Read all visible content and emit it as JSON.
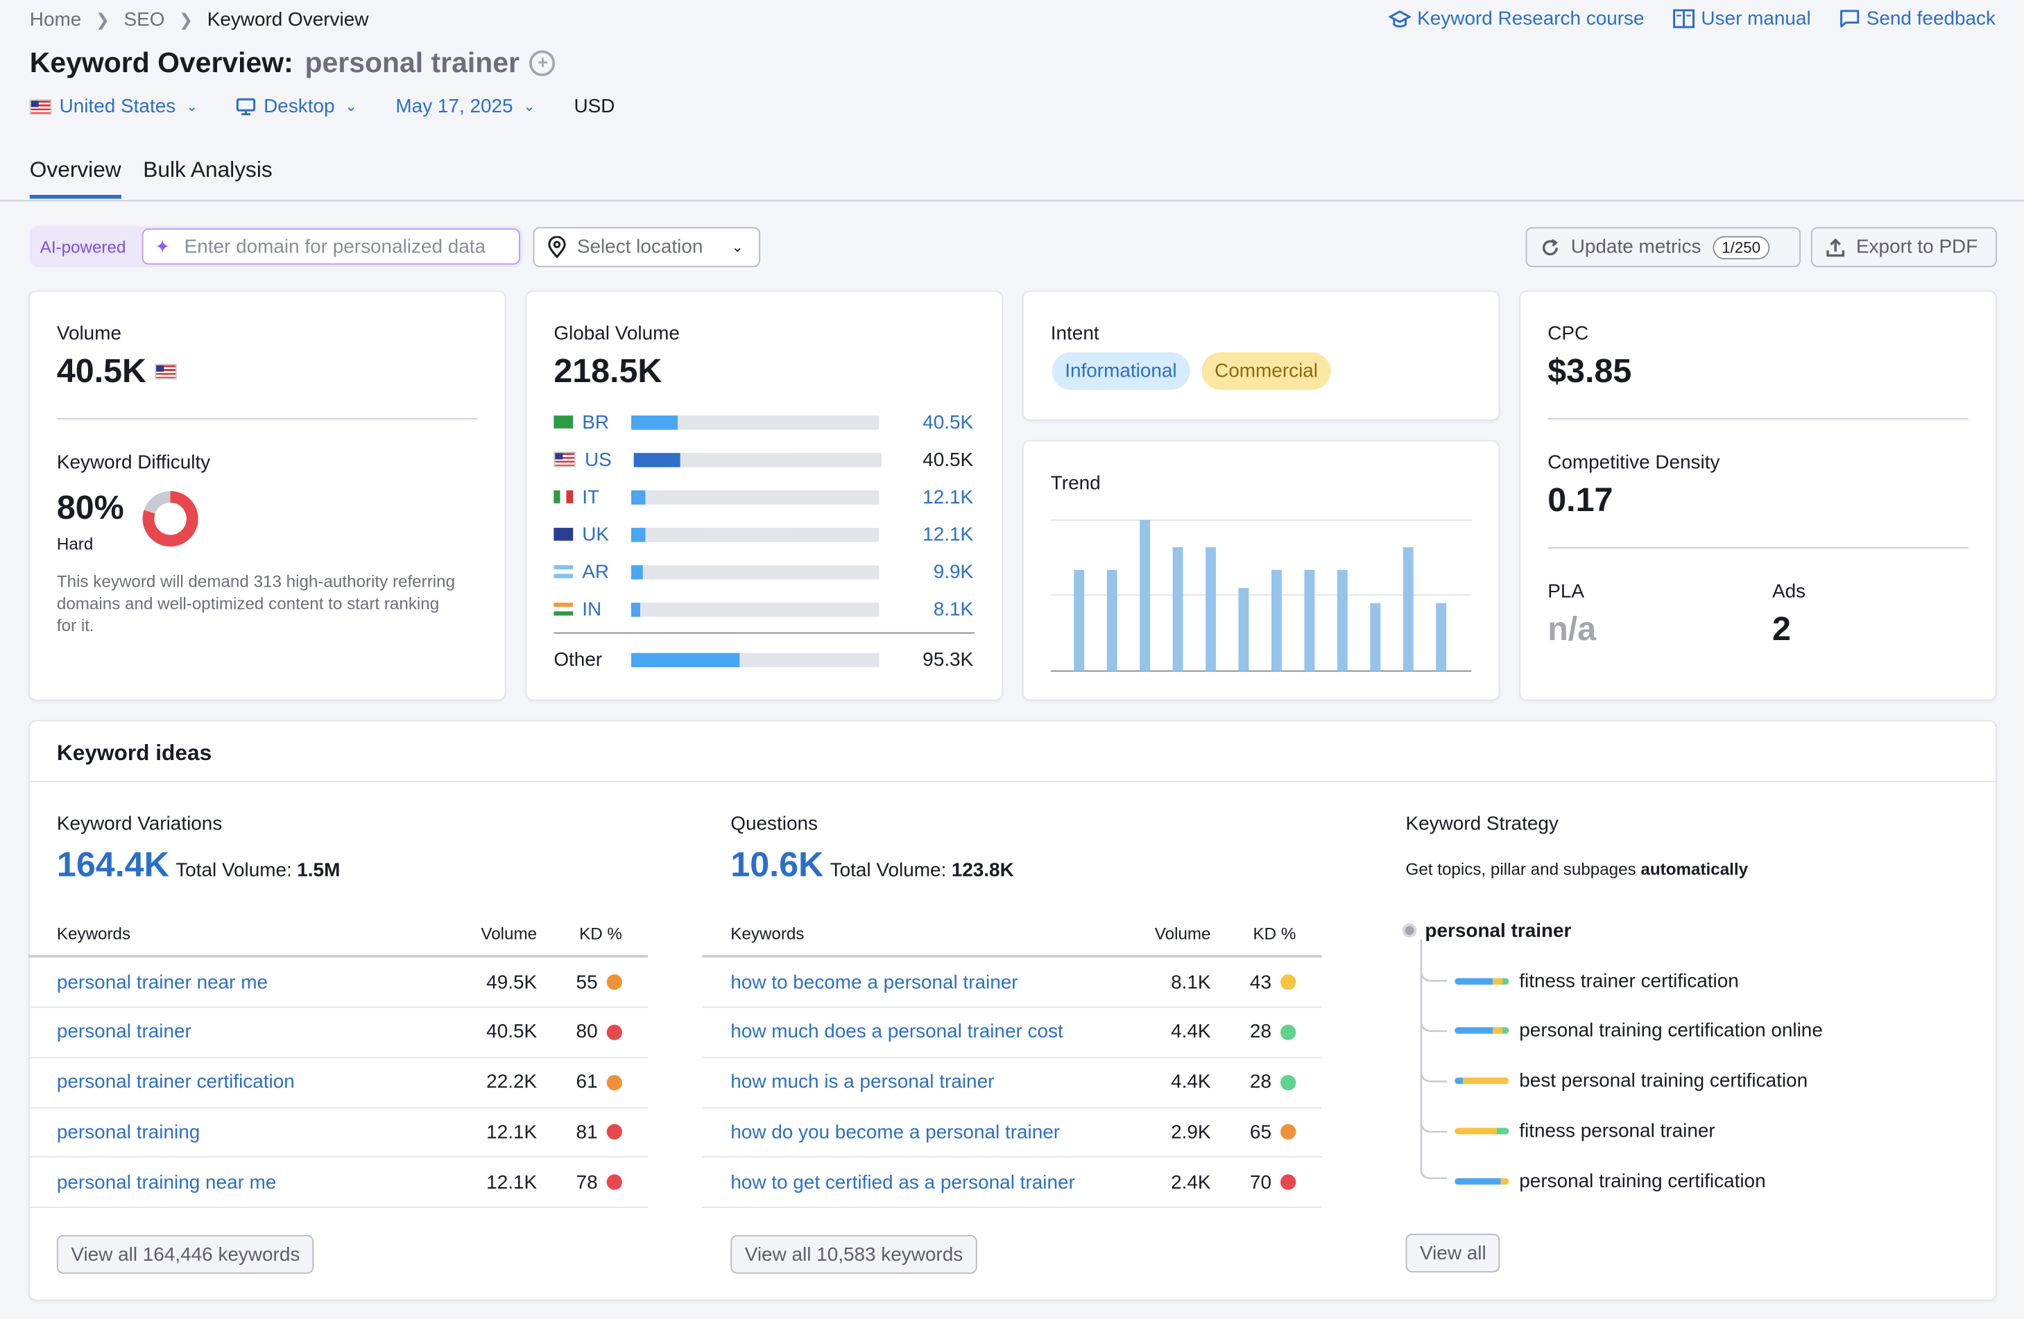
{
  "breadcrumb": [
    "Home",
    "SEO",
    "Keyword Overview"
  ],
  "top_links": {
    "course": "Keyword Research course",
    "manual": "User manual",
    "feedback": "Send feedback"
  },
  "title": {
    "prefix": "Keyword Overview:",
    "keyword": "personal trainer"
  },
  "filters": {
    "country": "United States",
    "device": "Desktop",
    "date": "May 17, 2025",
    "currency": "USD"
  },
  "tabs": [
    "Overview",
    "Bulk Analysis"
  ],
  "toolbar": {
    "ai_label": "AI-powered",
    "domain_placeholder": "Enter domain for personalized data",
    "location_placeholder": "Select location",
    "update_label": "Update metrics",
    "update_count": "1/250",
    "export_label": "Export to PDF"
  },
  "volume": {
    "label": "Volume",
    "value": "40.5K",
    "kd_label": "Keyword Difficulty",
    "kd_value": "80%",
    "kd_fraction": 0.8,
    "kd_level": "Hard",
    "kd_text": "This keyword will demand 313 high-authority referring domains and well-optimized content to start ranking for it."
  },
  "global_volume": {
    "label": "Global Volume",
    "value": "218.5K",
    "rows": [
      {
        "code": "BR",
        "value": "40.5K",
        "share": 0.185,
        "link": true
      },
      {
        "code": "US",
        "value": "40.5K",
        "share": 0.185,
        "link": false
      },
      {
        "code": "IT",
        "value": "12.1K",
        "share": 0.055,
        "link": true
      },
      {
        "code": "UK",
        "value": "12.1K",
        "share": 0.055,
        "link": true
      },
      {
        "code": "AR",
        "value": "9.9K",
        "share": 0.045,
        "link": true
      },
      {
        "code": "IN",
        "value": "8.1K",
        "share": 0.037,
        "link": true
      }
    ],
    "other_label": "Other",
    "other_value": "95.3K",
    "other_share": 0.436
  },
  "intent": {
    "label": "Intent",
    "badges": [
      "Informational",
      "Commercial"
    ]
  },
  "trend": {
    "label": "Trend",
    "values": [
      0.67,
      0.67,
      1.0,
      0.82,
      0.82,
      0.55,
      0.67,
      0.67,
      0.67,
      0.45,
      0.82,
      0.45
    ]
  },
  "cpc": {
    "label": "CPC",
    "value": "$3.85",
    "cd_label": "Competitive Density",
    "cd_value": "0.17",
    "pla_label": "PLA",
    "pla_value": "n/a",
    "ads_label": "Ads",
    "ads_value": "2"
  },
  "keyword_ideas": {
    "title": "Keyword ideas",
    "variations": {
      "label": "Keyword Variations",
      "count": "164.4K",
      "total_label": "Total Volume:",
      "total": "1.5M",
      "headers": [
        "Keywords",
        "Volume",
        "KD %"
      ],
      "rows": [
        {
          "kw": "personal trainer near me",
          "vol": "49.5K",
          "kd": "55",
          "color": "#f0913a"
        },
        {
          "kw": "personal trainer",
          "vol": "40.5K",
          "kd": "80",
          "color": "#e8474d"
        },
        {
          "kw": "personal trainer certification",
          "vol": "22.2K",
          "kd": "61",
          "color": "#f0913a"
        },
        {
          "kw": "personal training",
          "vol": "12.1K",
          "kd": "81",
          "color": "#e8474d"
        },
        {
          "kw": "personal training near me",
          "vol": "12.1K",
          "kd": "78",
          "color": "#e8474d"
        }
      ],
      "view_all": "View all 164,446 keywords"
    },
    "questions": {
      "label": "Questions",
      "count": "10.6K",
      "total_label": "Total Volume:",
      "total": "123.8K",
      "headers": [
        "Keywords",
        "Volume",
        "KD %"
      ],
      "rows": [
        {
          "kw": "how to become a personal trainer",
          "vol": "8.1K",
          "kd": "43",
          "color": "#f5c242"
        },
        {
          "kw": "how much does a personal trainer cost",
          "vol": "4.4K",
          "kd": "28",
          "color": "#5fd38d"
        },
        {
          "kw": "how much is a personal trainer",
          "vol": "4.4K",
          "kd": "28",
          "color": "#5fd38d"
        },
        {
          "kw": "how do you become a personal trainer",
          "vol": "2.9K",
          "kd": "65",
          "color": "#f0913a"
        },
        {
          "kw": "how to get certified as a personal trainer",
          "vol": "2.4K",
          "kd": "70",
          "color": "#e8474d"
        }
      ],
      "view_all": "View all 10,583 keywords"
    },
    "strategy": {
      "label": "Keyword Strategy",
      "desc": "Get topics, pillar and subpages",
      "desc_bold": "automatically",
      "root": "personal trainer",
      "items": [
        "fitness trainer certification",
        "personal training certification online",
        "best personal training certification",
        "fitness personal trainer",
        "personal training certification"
      ],
      "view_all": "View all"
    }
  }
}
